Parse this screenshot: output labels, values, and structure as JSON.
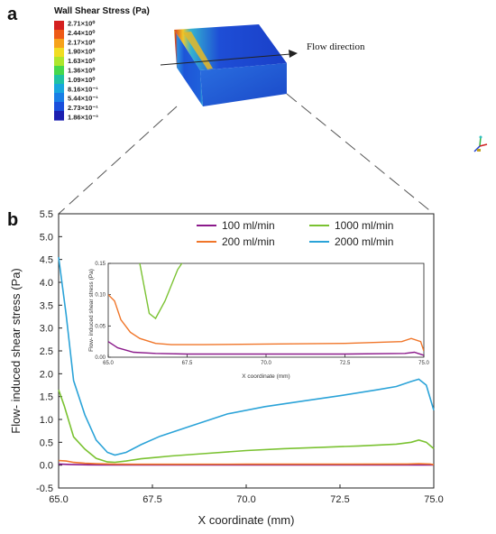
{
  "panel_a": {
    "label": "a",
    "colorbar": {
      "title": "Wall Shear Stress (Pa)",
      "ticks": [
        "2.71×10⁰",
        "2.44×10⁰",
        "2.17×10⁰",
        "1.90×10⁰",
        "1.63×10⁰",
        "1.36×10⁰",
        "1.09×10⁰",
        "8.16×10⁻¹",
        "5.44×10⁻¹",
        "2.73×10⁻¹",
        "1.86×10⁻³"
      ],
      "colors": [
        "#d42020",
        "#ee5a16",
        "#f6a21b",
        "#f1dd22",
        "#aee62c",
        "#46d84c",
        "#1fc2a3",
        "#18a6dd",
        "#197ee6",
        "#1a4fdc",
        "#1c1fb0"
      ]
    },
    "flow_label": "Flow direction"
  },
  "panel_b": {
    "label": "b"
  },
  "chart_data": [
    {
      "type": "line",
      "xlabel": "X coordinate (mm)",
      "ylabel": "Flow- induced shear stress (Pa)",
      "xlim": [
        65.0,
        75.0
      ],
      "ylim": [
        -0.5,
        5.5
      ],
      "xticks": [
        "65.0",
        "67.5",
        "70.0",
        "72.5",
        "75.0"
      ],
      "yticks": [
        "-0.5",
        "0.0",
        "0.5",
        "1.0",
        "1.5",
        "2.0",
        "2.5",
        "3.0",
        "3.5",
        "4.0",
        "4.5",
        "5.0",
        "5.5"
      ],
      "legend_position": "top-right",
      "series": [
        {
          "name": "100 ml/min",
          "color": "#8b1a8b",
          "x": [
            65.0,
            65.3,
            65.8,
            66.5,
            67.5,
            70.0,
            72.5,
            74.4,
            74.7,
            75.0
          ],
          "y": [
            0.025,
            0.015,
            0.008,
            0.006,
            0.005,
            0.005,
            0.005,
            0.006,
            0.008,
            0.003
          ]
        },
        {
          "name": "200 ml/min",
          "color": "#f0762a",
          "x": [
            65.0,
            65.2,
            65.4,
            65.7,
            66.0,
            66.5,
            67.0,
            68.0,
            70.0,
            72.5,
            74.3,
            74.6,
            74.9,
            75.0
          ],
          "y": [
            0.1,
            0.09,
            0.06,
            0.04,
            0.03,
            0.022,
            0.02,
            0.02,
            0.021,
            0.022,
            0.025,
            0.03,
            0.025,
            0.01
          ]
        },
        {
          "name": "1000 ml/min",
          "color": "#7ac231",
          "x": [
            65.0,
            65.15,
            65.4,
            65.7,
            66.0,
            66.3,
            66.5,
            66.8,
            67.2,
            67.6,
            68.0,
            69.0,
            70.0,
            71.0,
            72.0,
            73.0,
            74.0,
            74.4,
            74.6,
            74.8,
            75.0
          ],
          "y": [
            1.65,
            1.3,
            0.62,
            0.35,
            0.15,
            0.07,
            0.062,
            0.09,
            0.14,
            0.17,
            0.2,
            0.26,
            0.32,
            0.36,
            0.39,
            0.42,
            0.46,
            0.5,
            0.55,
            0.5,
            0.36
          ]
        },
        {
          "name": "2000 ml/min",
          "color": "#2ba3d8",
          "x": [
            65.0,
            65.2,
            65.4,
            65.7,
            66.0,
            66.3,
            66.5,
            66.8,
            67.2,
            67.7,
            68.5,
            69.5,
            70.5,
            71.5,
            72.5,
            73.5,
            74.0,
            74.4,
            74.6,
            74.8,
            75.0
          ],
          "y": [
            4.55,
            3.3,
            1.85,
            1.1,
            0.55,
            0.28,
            0.22,
            0.28,
            0.45,
            0.63,
            0.85,
            1.12,
            1.28,
            1.4,
            1.52,
            1.65,
            1.72,
            1.83,
            1.88,
            1.75,
            1.2
          ]
        }
      ]
    },
    {
      "type": "line",
      "xlabel": "X coordinate (mm)",
      "ylabel": "Flow- induced shear stress (Pa)",
      "xlim": [
        65.0,
        75.0
      ],
      "ylim": [
        0.0,
        0.15
      ],
      "xticks": [
        "65.0",
        "67.5",
        "70.0",
        "72.5",
        "75.0"
      ],
      "yticks": [
        "0.00",
        "0.05",
        "0.10",
        "0.15"
      ],
      "series_ref": [
        "100 ml/min",
        "200 ml/min",
        "1000 ml/min",
        "2000 ml/min"
      ]
    }
  ]
}
